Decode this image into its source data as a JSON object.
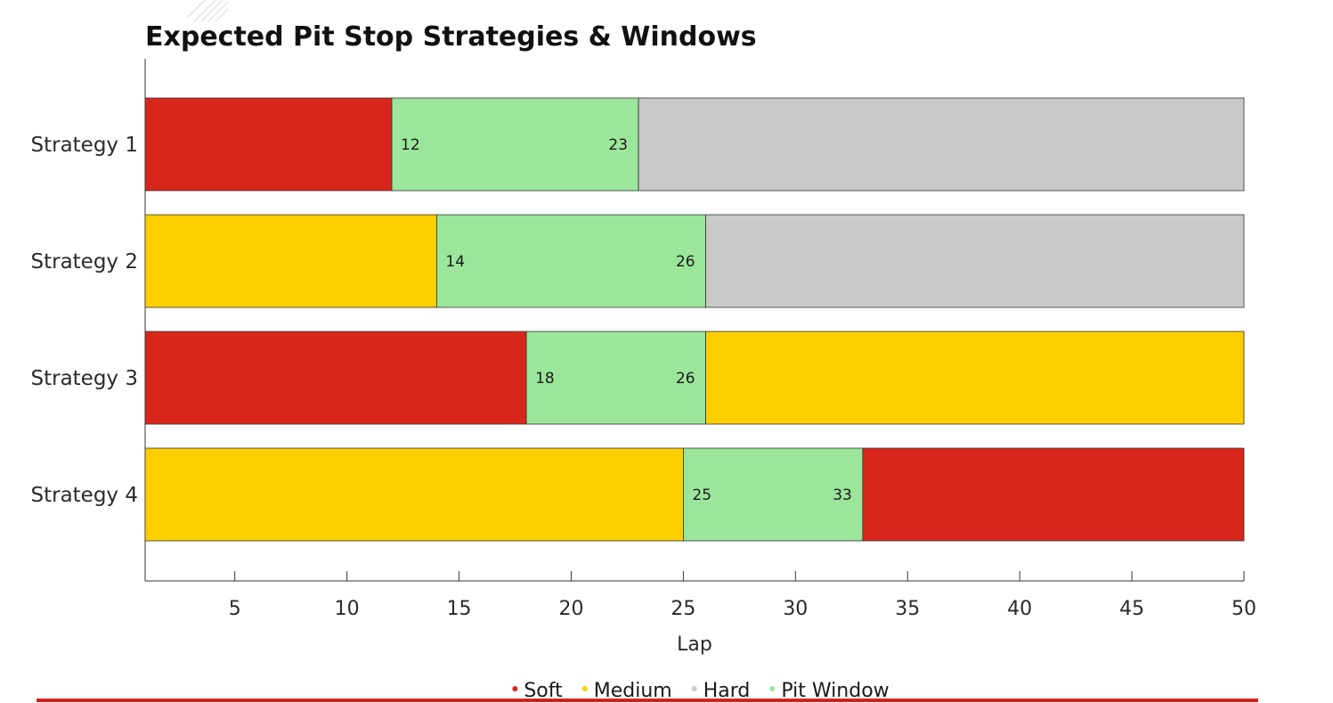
{
  "chart_data": {
    "type": "bar",
    "orientation": "horizontal-stacked",
    "title": "Expected Pit Stop Strategies & Windows",
    "xlabel": "Lap",
    "ylabel": "",
    "xlim": [
      1,
      50
    ],
    "x_ticks": [
      5,
      10,
      15,
      20,
      25,
      30,
      35,
      40,
      45,
      50
    ],
    "grid": false,
    "legend_position": "bottom-center",
    "colors": {
      "Soft": "#d9261c",
      "Medium": "#fecf00",
      "Hard": "#c9c9c9",
      "Pit Window": "#9be69a"
    },
    "legend": [
      {
        "name": "Soft",
        "color": "#d9261c"
      },
      {
        "name": "Medium",
        "color": "#fecf00"
      },
      {
        "name": "Hard",
        "color": "#c9c9c9"
      },
      {
        "name": "Pit Window",
        "color": "#9be69a"
      }
    ],
    "categories": [
      "Strategy 1",
      "Strategy 2",
      "Strategy 3",
      "Strategy 4"
    ],
    "strategies": [
      {
        "name": "Strategy 1",
        "segments": [
          {
            "compound": "Soft",
            "start": 1,
            "end": 12
          },
          {
            "compound": "Pit Window",
            "start": 12,
            "end": 23
          },
          {
            "compound": "Hard",
            "start": 23,
            "end": 50
          }
        ],
        "window": {
          "open": 12,
          "close": 23
        }
      },
      {
        "name": "Strategy 2",
        "segments": [
          {
            "compound": "Medium",
            "start": 1,
            "end": 14
          },
          {
            "compound": "Pit Window",
            "start": 14,
            "end": 26
          },
          {
            "compound": "Hard",
            "start": 26,
            "end": 50
          }
        ],
        "window": {
          "open": 14,
          "close": 26
        }
      },
      {
        "name": "Strategy 3",
        "segments": [
          {
            "compound": "Soft",
            "start": 1,
            "end": 18
          },
          {
            "compound": "Pit Window",
            "start": 18,
            "end": 26
          },
          {
            "compound": "Medium",
            "start": 26,
            "end": 50
          }
        ],
        "window": {
          "open": 18,
          "close": 26
        }
      },
      {
        "name": "Strategy 4",
        "segments": [
          {
            "compound": "Medium",
            "start": 1,
            "end": 25
          },
          {
            "compound": "Pit Window",
            "start": 25,
            "end": 33
          },
          {
            "compound": "Soft",
            "start": 33,
            "end": 50
          }
        ],
        "window": {
          "open": 25,
          "close": 33
        }
      }
    ]
  },
  "accent_color": "#d51f1f"
}
